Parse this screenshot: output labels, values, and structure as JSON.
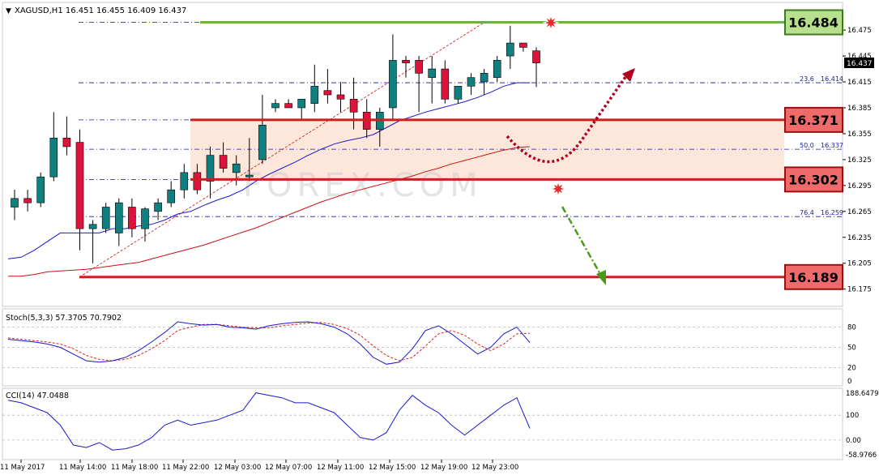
{
  "window": {
    "symbol_line": "XAGUSD,H1  16.451 16.455 16.409 16.437",
    "collapse_arrow": "triangle-down"
  },
  "colors": {
    "bull": "#0f7f80",
    "bear": "#dc143c",
    "ema_fast": "#1a1acc",
    "ema_slow": "#cc1111",
    "fib": "#1a1a99",
    "zone_fill": "#fde3d3",
    "resistance": "#6ab04c",
    "support": "#cc1f1f",
    "stoch_main": "#1a1acc",
    "stoch_signal": "#dd2222",
    "cci": "#1a1acc",
    "forecast_up": "#b00020",
    "forecast_down": "#4a9a1a"
  },
  "main_panel": {
    "current_price_tag": "16.437",
    "price_labels": {
      "resistance": "16.484",
      "zone_top": "16.371",
      "zone_bottom": "16.302",
      "support": "16.189"
    },
    "fib_labels": [
      {
        "level": "23.6",
        "price": "16.414"
      },
      {
        "level": "50.0",
        "price": "16.337"
      },
      {
        "level": "76.4",
        "price": "16.259"
      }
    ],
    "watermark": "FOREX.COM"
  },
  "chart_data": [
    {
      "type": "candlestick",
      "title": "XAGUSD,H1",
      "ylim": [
        16.175,
        16.49
      ],
      "y_ticks": [
        "16.475",
        "16.445",
        "16.415",
        "16.385",
        "16.355",
        "16.325",
        "16.295",
        "16.265",
        "16.235",
        "16.205",
        "16.175"
      ],
      "x_ticks": [
        "11 May 2017",
        "11 May 14:00",
        "11 May 18:00",
        "11 May 22:00",
        "12 May 03:00",
        "12 May 07:00",
        "12 May 11:00",
        "12 May 15:00",
        "12 May 19:00",
        "12 May 23:00"
      ],
      "ohlc": [
        [
          16.27,
          16.29,
          16.255,
          16.28
        ],
        [
          16.28,
          16.29,
          16.265,
          16.275
        ],
        [
          16.275,
          16.31,
          16.27,
          16.305
        ],
        [
          16.305,
          16.38,
          16.3,
          16.35
        ],
        [
          16.35,
          16.375,
          16.33,
          16.34
        ],
        [
          16.345,
          16.36,
          16.22,
          16.245
        ],
        [
          16.245,
          16.255,
          16.205,
          16.25
        ],
        [
          16.245,
          16.275,
          16.24,
          16.27
        ],
        [
          16.24,
          16.28,
          16.225,
          16.275
        ],
        [
          16.27,
          16.28,
          16.235,
          16.245
        ],
        [
          16.245,
          16.27,
          16.23,
          16.268
        ],
        [
          16.265,
          16.28,
          16.255,
          16.275
        ],
        [
          16.275,
          16.3,
          16.27,
          16.29
        ],
        [
          16.29,
          16.32,
          16.28,
          16.31
        ],
        [
          16.31,
          16.32,
          16.285,
          16.29
        ],
        [
          16.3,
          16.34,
          16.28,
          16.33
        ],
        [
          16.33,
          16.345,
          16.31,
          16.315
        ],
        [
          16.31,
          16.33,
          16.295,
          16.32
        ],
        [
          16.305,
          16.35,
          16.3,
          16.307
        ],
        [
          16.325,
          16.4,
          16.32,
          16.365
        ],
        [
          16.385,
          16.395,
          16.38,
          16.39
        ],
        [
          16.39,
          16.395,
          16.385,
          16.385
        ],
        [
          16.385,
          16.395,
          16.37,
          16.395
        ],
        [
          16.39,
          16.435,
          16.38,
          16.41
        ],
        [
          16.405,
          16.43,
          16.39,
          16.4
        ],
        [
          16.4,
          16.415,
          16.38,
          16.395
        ],
        [
          16.395,
          16.42,
          16.36,
          16.38
        ],
        [
          16.38,
          16.395,
          16.35,
          16.36
        ],
        [
          16.36,
          16.385,
          16.34,
          16.38
        ],
        [
          16.385,
          16.47,
          16.37,
          16.44
        ],
        [
          16.44,
          16.445,
          16.42,
          16.437
        ],
        [
          16.44,
          16.445,
          16.38,
          16.425
        ],
        [
          16.42,
          16.445,
          16.39,
          16.43
        ],
        [
          16.43,
          16.44,
          16.39,
          16.395
        ],
        [
          16.395,
          16.41,
          16.39,
          16.41
        ],
        [
          16.41,
          16.425,
          16.4,
          16.42
        ],
        [
          16.415,
          16.43,
          16.4,
          16.425
        ],
        [
          16.42,
          16.445,
          16.415,
          16.44
        ],
        [
          16.445,
          16.48,
          16.43,
          16.46
        ],
        [
          16.46,
          16.46,
          16.45,
          16.455
        ],
        [
          16.451,
          16.455,
          16.409,
          16.437
        ]
      ],
      "ema_fast": [
        16.21,
        16.212,
        16.22,
        16.23,
        16.24,
        16.24,
        16.24,
        16.24,
        16.245,
        16.245,
        16.248,
        16.25,
        16.255,
        16.262,
        16.265,
        16.272,
        16.278,
        16.283,
        16.29,
        16.3,
        16.308,
        16.315,
        16.322,
        16.33,
        16.337,
        16.343,
        16.347,
        16.35,
        16.354,
        16.362,
        16.37,
        16.375,
        16.38,
        16.384,
        16.388,
        16.392,
        16.397,
        16.403,
        16.41,
        16.414,
        16.414
      ],
      "ema_slow": [
        16.19,
        16.19,
        16.192,
        16.195,
        16.196,
        16.197,
        16.198,
        16.2,
        16.202,
        16.204,
        16.206,
        16.21,
        16.214,
        16.218,
        16.222,
        16.226,
        16.231,
        16.236,
        16.241,
        16.246,
        16.252,
        16.258,
        16.264,
        16.27,
        16.276,
        16.281,
        16.286,
        16.29,
        16.294,
        16.298,
        16.302,
        16.306,
        16.311,
        16.315,
        16.32,
        16.324,
        16.328,
        16.332,
        16.336,
        16.339,
        16.34
      ],
      "lines": [
        {
          "name": "resistance",
          "value": 16.484
        },
        {
          "name": "zone_top",
          "value": 16.371
        },
        {
          "name": "zone_bottom",
          "value": 16.302
        },
        {
          "name": "support",
          "value": 16.189
        }
      ],
      "fib_levels": [
        {
          "value": 16.484,
          "label": ""
        },
        {
          "value": 16.414,
          "label": "23.6"
        },
        {
          "value": 16.371,
          "label": ""
        },
        {
          "value": 16.337,
          "label": "50.0"
        },
        {
          "value": 16.302,
          "label": ""
        },
        {
          "value": 16.259,
          "label": "76.4"
        }
      ]
    },
    {
      "type": "line",
      "title": "Stoch(5,3,3) 57.3705 70.7902",
      "ylim": [
        0,
        100
      ],
      "y_ticks": [
        "80",
        "50",
        "20",
        "0"
      ],
      "levels": [
        80,
        50,
        20
      ],
      "series": [
        {
          "name": "main",
          "values": [
            62,
            60,
            58,
            55,
            50,
            40,
            30,
            28,
            30,
            35,
            45,
            58,
            72,
            88,
            85,
            83,
            84,
            80,
            79,
            77,
            82,
            85,
            87,
            88,
            85,
            80,
            70,
            55,
            35,
            25,
            28,
            48,
            75,
            82,
            70,
            55,
            40,
            50,
            70,
            80,
            57
          ]
        },
        {
          "name": "signal",
          "values": [
            64,
            62,
            60,
            58,
            55,
            48,
            38,
            32,
            30,
            32,
            38,
            48,
            60,
            75,
            80,
            84,
            84,
            82,
            80,
            79,
            79,
            82,
            84,
            86,
            87,
            84,
            78,
            68,
            52,
            38,
            30,
            35,
            52,
            70,
            75,
            68,
            55,
            45,
            55,
            70,
            71
          ]
        }
      ]
    },
    {
      "type": "line",
      "title": "CCI(14) 47.0488",
      "ylim": [
        -58.9766,
        188.6479
      ],
      "y_ticks": [
        "188.6479",
        "100",
        "0.00",
        "-58.9766"
      ],
      "levels": [
        100,
        0
      ],
      "series": [
        {
          "name": "cci",
          "values": [
            160,
            150,
            130,
            110,
            60,
            -20,
            -30,
            -10,
            -40,
            -35,
            -20,
            10,
            60,
            80,
            60,
            70,
            80,
            100,
            120,
            190,
            180,
            170,
            150,
            150,
            130,
            110,
            60,
            10,
            0,
            30,
            120,
            180,
            140,
            110,
            60,
            20,
            60,
            100,
            140,
            170,
            47
          ]
        }
      ]
    }
  ]
}
